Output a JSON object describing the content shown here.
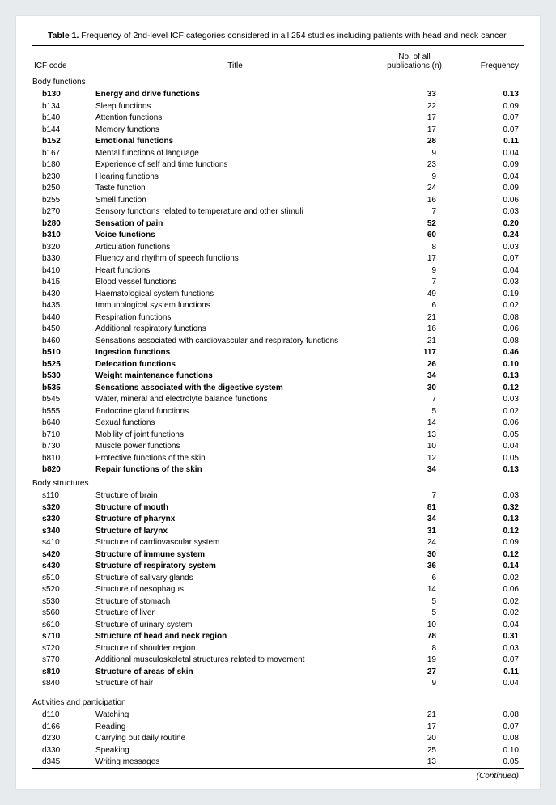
{
  "caption_label": "Table 1.",
  "caption_text": " Frequency of 2nd-level ICF categories considered in all 254 studies including patients with head and neck cancer.",
  "headers": {
    "code": "ICF code",
    "title": "Title",
    "n_line1": "No. of all",
    "n_line2": "publications (n)",
    "freq": "Frequency"
  },
  "sections": [
    {
      "name": "Body functions",
      "rows": [
        {
          "code": "b130",
          "title": "Energy and drive functions",
          "n": "33",
          "freq": "0.13",
          "bold": true
        },
        {
          "code": "b134",
          "title": "Sleep functions",
          "n": "22",
          "freq": "0.09",
          "bold": false
        },
        {
          "code": "b140",
          "title": "Attention functions",
          "n": "17",
          "freq": "0.07",
          "bold": false
        },
        {
          "code": "b144",
          "title": "Memory functions",
          "n": "17",
          "freq": "0.07",
          "bold": false
        },
        {
          "code": "b152",
          "title": "Emotional functions",
          "n": "28",
          "freq": "0.11",
          "bold": true
        },
        {
          "code": "b167",
          "title": "Mental functions of language",
          "n": "9",
          "freq": "0.04",
          "bold": false
        },
        {
          "code": "b180",
          "title": "Experience of self and time functions",
          "n": "23",
          "freq": "0.09",
          "bold": false
        },
        {
          "code": "b230",
          "title": "Hearing functions",
          "n": "9",
          "freq": "0.04",
          "bold": false
        },
        {
          "code": "b250",
          "title": "Taste function",
          "n": "24",
          "freq": "0.09",
          "bold": false
        },
        {
          "code": "b255",
          "title": "Smell function",
          "n": "16",
          "freq": "0.06",
          "bold": false
        },
        {
          "code": "b270",
          "title": "Sensory functions related to temperature and other stimuli",
          "n": "7",
          "freq": "0.03",
          "bold": false
        },
        {
          "code": "b280",
          "title": "Sensation of pain",
          "n": "52",
          "freq": "0.20",
          "bold": true
        },
        {
          "code": "b310",
          "title": "Voice functions",
          "n": "60",
          "freq": "0.24",
          "bold": true
        },
        {
          "code": "b320",
          "title": "Articulation functions",
          "n": "8",
          "freq": "0.03",
          "bold": false
        },
        {
          "code": "b330",
          "title": "Fluency and rhythm of speech functions",
          "n": "17",
          "freq": "0.07",
          "bold": false
        },
        {
          "code": "b410",
          "title": "Heart functions",
          "n": "9",
          "freq": "0.04",
          "bold": false
        },
        {
          "code": "b415",
          "title": "Blood vessel functions",
          "n": "7",
          "freq": "0.03",
          "bold": false
        },
        {
          "code": "b430",
          "title": "Haematological system functions",
          "n": "49",
          "freq": "0.19",
          "bold": false
        },
        {
          "code": "b435",
          "title": "Immunological system functions",
          "n": "6",
          "freq": "0.02",
          "bold": false
        },
        {
          "code": "b440",
          "title": "Respiration functions",
          "n": "21",
          "freq": "0.08",
          "bold": false
        },
        {
          "code": "b450",
          "title": "Additional respiratory functions",
          "n": "16",
          "freq": "0.06",
          "bold": false
        },
        {
          "code": "b460",
          "title": "Sensations associated with cardiovascular and respiratory functions",
          "n": "21",
          "freq": "0.08",
          "bold": false
        },
        {
          "code": "b510",
          "title": "Ingestion functions",
          "n": "117",
          "freq": "0.46",
          "bold": true
        },
        {
          "code": "b525",
          "title": "Defecation functions",
          "n": "26",
          "freq": "0.10",
          "bold": true
        },
        {
          "code": "b530",
          "title": "Weight maintenance functions",
          "n": "34",
          "freq": "0.13",
          "bold": true
        },
        {
          "code": "b535",
          "title": "Sensations associated with the digestive system",
          "n": "30",
          "freq": "0.12",
          "bold": true
        },
        {
          "code": "b545",
          "title": "Water, mineral and electrolyte balance functions",
          "n": "7",
          "freq": "0.03",
          "bold": false
        },
        {
          "code": "b555",
          "title": "Endocrine gland functions",
          "n": "5",
          "freq": "0.02",
          "bold": false
        },
        {
          "code": "b640",
          "title": "Sexual functions",
          "n": "14",
          "freq": "0.06",
          "bold": false
        },
        {
          "code": "b710",
          "title": "Mobility of joint functions",
          "n": "13",
          "freq": "0.05",
          "bold": false
        },
        {
          "code": "b730",
          "title": "Muscle power functions",
          "n": "10",
          "freq": "0.04",
          "bold": false
        },
        {
          "code": "b810",
          "title": "Protective functions of the skin",
          "n": "12",
          "freq": "0.05",
          "bold": false
        },
        {
          "code": "b820",
          "title": "Repair functions of the skin",
          "n": "34",
          "freq": "0.13",
          "bold": true
        }
      ]
    },
    {
      "name": "Body structures",
      "rows": [
        {
          "code": "s110",
          "title": "Structure of brain",
          "n": "7",
          "freq": "0.03",
          "bold": false
        },
        {
          "code": "s320",
          "title": "Structure of mouth",
          "n": "81",
          "freq": "0.32",
          "bold": true
        },
        {
          "code": "s330",
          "title": "Structure of pharynx",
          "n": "34",
          "freq": "0.13",
          "bold": true
        },
        {
          "code": "s340",
          "title": "Structure of larynx",
          "n": "31",
          "freq": "0.12",
          "bold": true
        },
        {
          "code": "s410",
          "title": "Structure of cardiovascular system",
          "n": "24",
          "freq": "0.09",
          "bold": false
        },
        {
          "code": "s420",
          "title": "Structure of immune system",
          "n": "30",
          "freq": "0.12",
          "bold": true
        },
        {
          "code": "s430",
          "title": "Structure of respiratory system",
          "n": "36",
          "freq": "0.14",
          "bold": true
        },
        {
          "code": "s510",
          "title": "Structure of salivary glands",
          "n": "6",
          "freq": "0.02",
          "bold": false
        },
        {
          "code": "s520",
          "title": "Structure of oesophagus",
          "n": "14",
          "freq": "0.06",
          "bold": false
        },
        {
          "code": "s530",
          "title": "Structure of stomach",
          "n": "5",
          "freq": "0.02",
          "bold": false
        },
        {
          "code": "s560",
          "title": "Structure of liver",
          "n": "5",
          "freq": "0.02",
          "bold": false
        },
        {
          "code": "s610",
          "title": "Structure of urinary system",
          "n": "10",
          "freq": "0.04",
          "bold": false
        },
        {
          "code": "s710",
          "title": "Structure of head and neck region",
          "n": "78",
          "freq": "0.31",
          "bold": true
        },
        {
          "code": "s720",
          "title": "Structure of shoulder region",
          "n": "8",
          "freq": "0.03",
          "bold": false
        },
        {
          "code": "s770",
          "title": "Additional musculoskeletal structures related to movement",
          "n": "19",
          "freq": "0.07",
          "bold": false
        },
        {
          "code": "s810",
          "title": "Structure of areas of skin",
          "n": "27",
          "freq": "0.11",
          "bold": true
        },
        {
          "code": "s840",
          "title": "Structure of hair",
          "n": "9",
          "freq": "0.04",
          "bold": false
        }
      ]
    },
    {
      "name": "Activities and participation",
      "rows": [
        {
          "code": "d110",
          "title": "Watching",
          "n": "21",
          "freq": "0.08",
          "bold": false
        },
        {
          "code": "d166",
          "title": "Reading",
          "n": "17",
          "freq": "0.07",
          "bold": false
        },
        {
          "code": "d230",
          "title": "Carrying out daily routine",
          "n": "20",
          "freq": "0.08",
          "bold": false
        },
        {
          "code": "d330",
          "title": "Speaking",
          "n": "25",
          "freq": "0.10",
          "bold": false
        },
        {
          "code": "d345",
          "title": "Writing messages",
          "n": "13",
          "freq": "0.05",
          "bold": false
        }
      ]
    }
  ],
  "continued": "(Continued)"
}
